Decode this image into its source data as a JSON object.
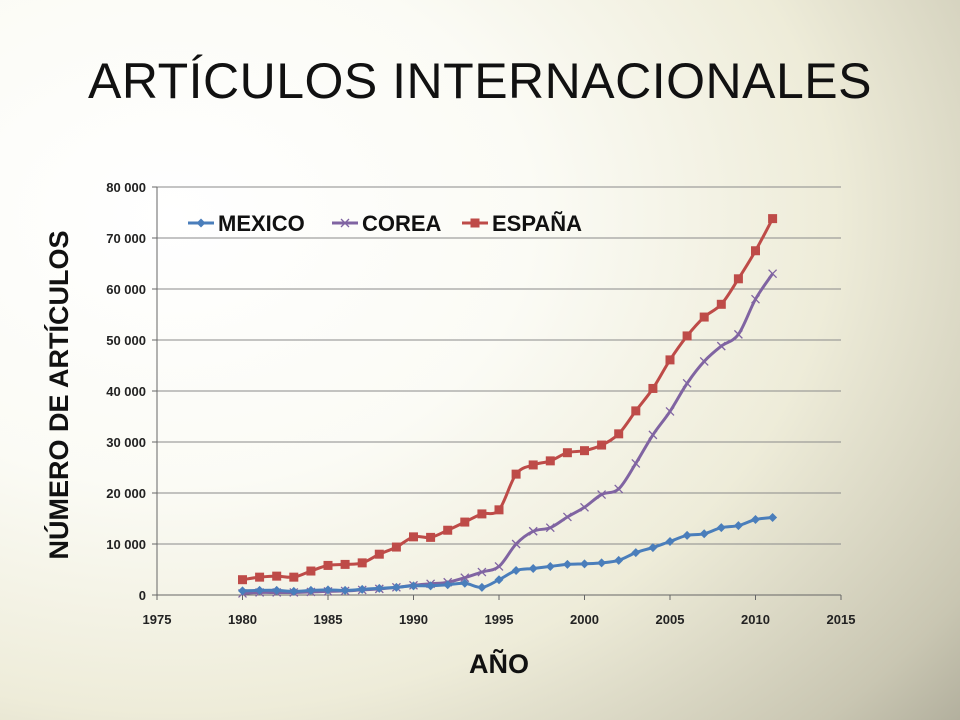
{
  "slide": {
    "title": "ARTÍCULOS INTERNACIONALES"
  },
  "chart_data": {
    "type": "line",
    "xlabel": "AÑO",
    "ylabel": "NÚMERO DE ARTÍCULOS",
    "xlim": [
      1975,
      2015
    ],
    "ylim": [
      0,
      80000
    ],
    "x_ticks": [
      1975,
      1980,
      1985,
      1990,
      1995,
      2000,
      2005,
      2010,
      2015
    ],
    "y_ticks": [
      0,
      10000,
      20000,
      30000,
      40000,
      50000,
      60000,
      70000,
      80000
    ],
    "y_tick_labels": [
      "0",
      "10 000",
      "20 000",
      "30 000",
      "40 000",
      "50 000",
      "60 000",
      "70 000",
      "80 000"
    ],
    "x_tick_labels": [
      "1975",
      "1980",
      "1985",
      "1990",
      "1995",
      "2000",
      "2005",
      "2010",
      "2015"
    ],
    "grid": "horizontal",
    "legend_placement": "top-left",
    "x": [
      1980,
      1981,
      1982,
      1983,
      1984,
      1985,
      1986,
      1987,
      1988,
      1989,
      1990,
      1991,
      1992,
      1993,
      1994,
      1995,
      1996,
      1997,
      1998,
      1999,
      2000,
      2001,
      2002,
      2003,
      2004,
      2005,
      2006,
      2007,
      2008,
      2009,
      2010,
      2011
    ],
    "series": [
      {
        "name": "MEXICO",
        "color": "#4a7ebb",
        "marker": "diamond",
        "values": [
          800,
          900,
          900,
          700,
          900,
          1000,
          900,
          1100,
          1300,
          1500,
          1800,
          1800,
          2000,
          2300,
          1500,
          3000,
          4800,
          5200,
          5600,
          6000,
          6100,
          6300,
          6800,
          8300,
          9300,
          10500,
          11700,
          12000,
          13200,
          13600,
          14800,
          15200
        ]
      },
      {
        "name": "COREA",
        "color": "#8064a2",
        "marker": "x",
        "values": [
          300,
          500,
          500,
          500,
          600,
          700,
          800,
          1000,
          1200,
          1500,
          1900,
          2200,
          2500,
          3400,
          4500,
          5600,
          10000,
          12500,
          13200,
          15300,
          17200,
          19700,
          20800,
          25800,
          31400,
          36000,
          41500,
          45800,
          48800,
          51100,
          58000,
          63000
        ]
      },
      {
        "name": "ESPAÑA",
        "color": "#be4b48",
        "marker": "square",
        "values": [
          3000,
          3500,
          3700,
          3500,
          4700,
          5800,
          6000,
          6300,
          8000,
          9400,
          11400,
          11300,
          12700,
          14300,
          15900,
          16700,
          23700,
          25500,
          26300,
          27900,
          28300,
          29400,
          31600,
          36100,
          40500,
          46100,
          50800,
          54500,
          57000,
          62000,
          67500,
          73800
        ]
      }
    ]
  }
}
